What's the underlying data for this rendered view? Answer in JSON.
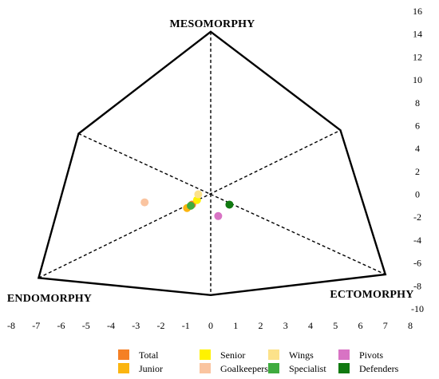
{
  "chart_data": {
    "type": "scatter",
    "chart_kind": "somatochart",
    "xlim": [
      -8,
      8
    ],
    "ylim": [
      -10,
      16
    ],
    "x_ticks": [
      "-8",
      "-7",
      "-6",
      "-5",
      "-4",
      "-3",
      "-2",
      "-1",
      "0",
      "1",
      "2",
      "3",
      "4",
      "5",
      "6",
      "7",
      "8"
    ],
    "y_ticks": [
      "16",
      "14",
      "12",
      "10",
      "8",
      "6",
      "4",
      "2",
      "0",
      "-2",
      "-4",
      "-6",
      "-8",
      "-10"
    ],
    "vertex_labels": {
      "mesomorphy": "MESOMORPHY",
      "endomorphy": "ENDOMORPHY",
      "ectomorphy": "ECTOMORPHY"
    },
    "outline": [
      [
        0,
        14.2
      ],
      [
        5.2,
        5.6
      ],
      [
        7,
        -7
      ],
      [
        0,
        -8.8
      ],
      [
        -6.9,
        -7.3
      ],
      [
        -5.3,
        5.3
      ],
      [
        0,
        14.2
      ]
    ],
    "axes": {
      "vertical": [
        [
          0,
          14.2
        ],
        [
          0,
          -8.8
        ]
      ],
      "diag_a": [
        [
          -5.3,
          5.3
        ],
        [
          7,
          -7
        ]
      ],
      "diag_b": [
        [
          -6.9,
          -7.3
        ],
        [
          5.2,
          5.6
        ]
      ]
    },
    "series": [
      {
        "name": "Total",
        "color": "#f58025",
        "x": -0.75,
        "y": -0.9
      },
      {
        "name": "Junior",
        "color": "#fbb510",
        "x": -0.95,
        "y": -1.2
      },
      {
        "name": "Senior",
        "color": "#fff200",
        "x": -0.55,
        "y": -0.5
      },
      {
        "name": "Goalkeepers",
        "color": "#fac4a0",
        "x": -2.65,
        "y": -0.7
      },
      {
        "name": "Wings",
        "color": "#fce28a",
        "x": -0.5,
        "y": 0.0
      },
      {
        "name": "Specialist",
        "color": "#3fab3f",
        "x": -0.8,
        "y": -1.0
      },
      {
        "name": "Pivots",
        "color": "#d873c4",
        "x": 0.3,
        "y": -1.9
      },
      {
        "name": "Defenders",
        "color": "#117a11",
        "x": 0.75,
        "y": -0.9
      }
    ],
    "legend_position": "bottom"
  }
}
